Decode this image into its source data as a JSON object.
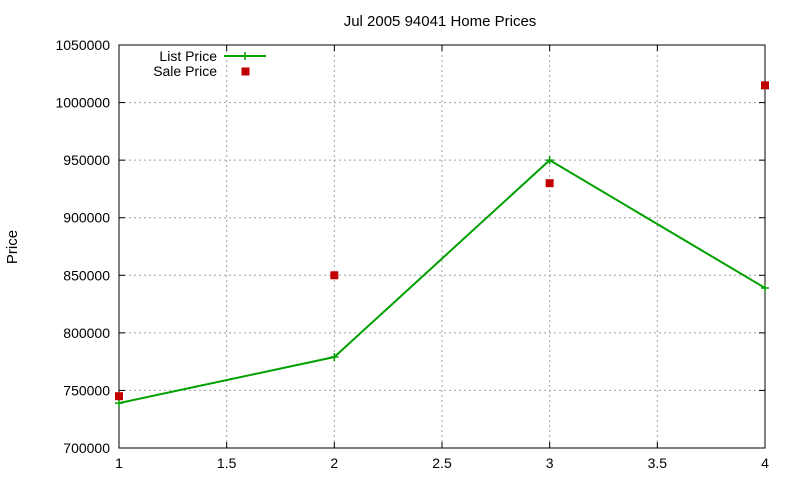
{
  "chart_data": {
    "type": "line",
    "title": "Jul 2005 94041 Home Prices",
    "ylabel": "Price",
    "xlabel": "",
    "xlim": [
      1,
      4
    ],
    "ylim": [
      700000,
      1050000
    ],
    "x_ticks": [
      "1",
      "1.5",
      "2",
      "2.5",
      "3",
      "3.5",
      "4"
    ],
    "y_ticks": [
      "700000",
      "750000",
      "800000",
      "850000",
      "900000",
      "950000",
      "1000000",
      "1050000"
    ],
    "grid": true,
    "legend_position": "top-left",
    "series": [
      {
        "name": "List Price",
        "style": "line-with-plus-markers",
        "color": "#00a000",
        "points": [
          [
            1,
            739000
          ],
          [
            2,
            779000
          ],
          [
            3,
            950000
          ],
          [
            4,
            839000
          ]
        ]
      },
      {
        "name": "Sale Price",
        "style": "square-markers",
        "color": "#c00000",
        "points": [
          [
            1,
            745000
          ],
          [
            2,
            850000
          ],
          [
            3,
            930000
          ],
          [
            4,
            1015000
          ]
        ]
      }
    ]
  }
}
